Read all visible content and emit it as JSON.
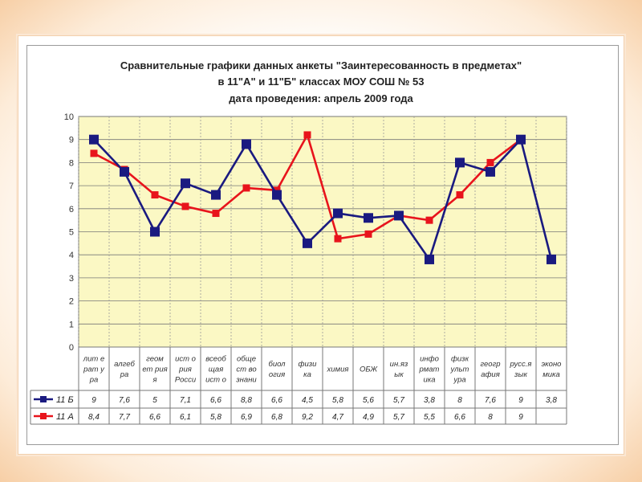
{
  "chart_data": {
    "type": "line",
    "title_lines": [
      "Сравнительные графики данных анкеты \"Заинтересованность в предметах\"",
      "в 11\"А\" и 11\"Б\" классах МОУ СОШ № 53",
      "дата проведения: апрель 2009 года"
    ],
    "ylim": [
      0,
      10
    ],
    "yticks": [
      "0",
      "1",
      "2",
      "3",
      "4",
      "5",
      "6",
      "7",
      "8",
      "9",
      "10"
    ],
    "grid": true,
    "legend": "left, in data table",
    "categories": [
      [
        "лит е",
        "рат у",
        "ра"
      ],
      [
        "алгеб",
        "ра"
      ],
      [
        "геом",
        "ет рия",
        "я"
      ],
      [
        "ист о",
        "рия",
        "Росси"
      ],
      [
        "всеоб",
        "щая",
        "ист о"
      ],
      [
        "обще",
        "ст во",
        "знани"
      ],
      [
        "биол",
        "огия"
      ],
      [
        "физи",
        "ка"
      ],
      [
        "химия"
      ],
      [
        "ОБЖ"
      ],
      [
        "ин.яз",
        "ык"
      ],
      [
        "инфо",
        "рмат",
        "ика"
      ],
      [
        "физк",
        "ульт",
        "ура"
      ],
      [
        "геогр",
        "афия"
      ],
      [
        "русс.я",
        "зык"
      ],
      [
        "эконо",
        "мика"
      ]
    ],
    "series": [
      {
        "name": "11 Б",
        "color": "#1a1a80",
        "marker": "square",
        "values": [
          9,
          7.6,
          5,
          7.1,
          6.6,
          8.8,
          6.6,
          4.5,
          5.8,
          5.6,
          5.7,
          3.8,
          8,
          7.6,
          9,
          3.8
        ],
        "labels": [
          "9",
          "7,6",
          "5",
          "7,1",
          "6,6",
          "8,8",
          "6,6",
          "4,5",
          "5,8",
          "5,6",
          "5,7",
          "3,8",
          "8",
          "7,6",
          "9",
          "3,8"
        ]
      },
      {
        "name": "11 А",
        "color": "#e8141c",
        "marker": "square",
        "values": [
          8.4,
          7.7,
          6.6,
          6.1,
          5.8,
          6.9,
          6.8,
          9.2,
          4.7,
          4.9,
          5.7,
          5.5,
          6.6,
          8,
          9,
          null
        ],
        "labels": [
          "8,4",
          "7,7",
          "6,6",
          "6,1",
          "5,8",
          "6,9",
          "6,8",
          "9,2",
          "4,7",
          "4,9",
          "5,7",
          "5,5",
          "6,6",
          "8",
          "9",
          ""
        ]
      }
    ],
    "colors": {
      "plot_background": "#fbf8c4",
      "gridline": "#8a8a8a"
    }
  }
}
